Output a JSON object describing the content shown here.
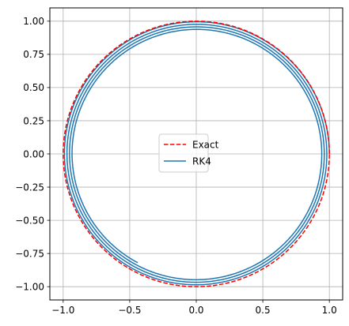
{
  "chart_data": {
    "type": "line",
    "title": "",
    "xlabel": "",
    "ylabel": "",
    "xlim": [
      -1.1,
      1.1
    ],
    "ylim": [
      -1.1,
      1.1
    ],
    "grid": true,
    "legend_placement": "center",
    "x_ticks": [
      {
        "value": -1.0,
        "label": "−1.0"
      },
      {
        "value": -0.5,
        "label": "−0.5"
      },
      {
        "value": 0.0,
        "label": "0.0"
      },
      {
        "value": 0.5,
        "label": "0.5"
      },
      {
        "value": 1.0,
        "label": "1.0"
      }
    ],
    "y_ticks": [
      {
        "value": 1.0,
        "label": "1.00"
      },
      {
        "value": 0.75,
        "label": "0.75"
      },
      {
        "value": 0.5,
        "label": "0.50"
      },
      {
        "value": 0.25,
        "label": "0.25"
      },
      {
        "value": 0.0,
        "label": "0.00"
      },
      {
        "value": -0.25,
        "label": "−0.25"
      },
      {
        "value": -0.5,
        "label": "−0.50"
      },
      {
        "value": -0.75,
        "label": "−0.75"
      },
      {
        "value": -1.0,
        "label": "−1.00"
      }
    ],
    "series": [
      {
        "name": "Exact",
        "style": "dashed",
        "color": "#ff0000",
        "curve": "circle",
        "radius": 1.0,
        "center": [
          0.0,
          0.0
        ]
      },
      {
        "name": "RK4",
        "style": "solid",
        "color": "#1f77b4",
        "curve": "inward spiral",
        "start": [
          1.0,
          0.0
        ],
        "end": [
          -0.44,
          -0.82
        ],
        "radius_start": 1.0,
        "radius_end": 0.93,
        "turns": 3.32
      }
    ]
  }
}
